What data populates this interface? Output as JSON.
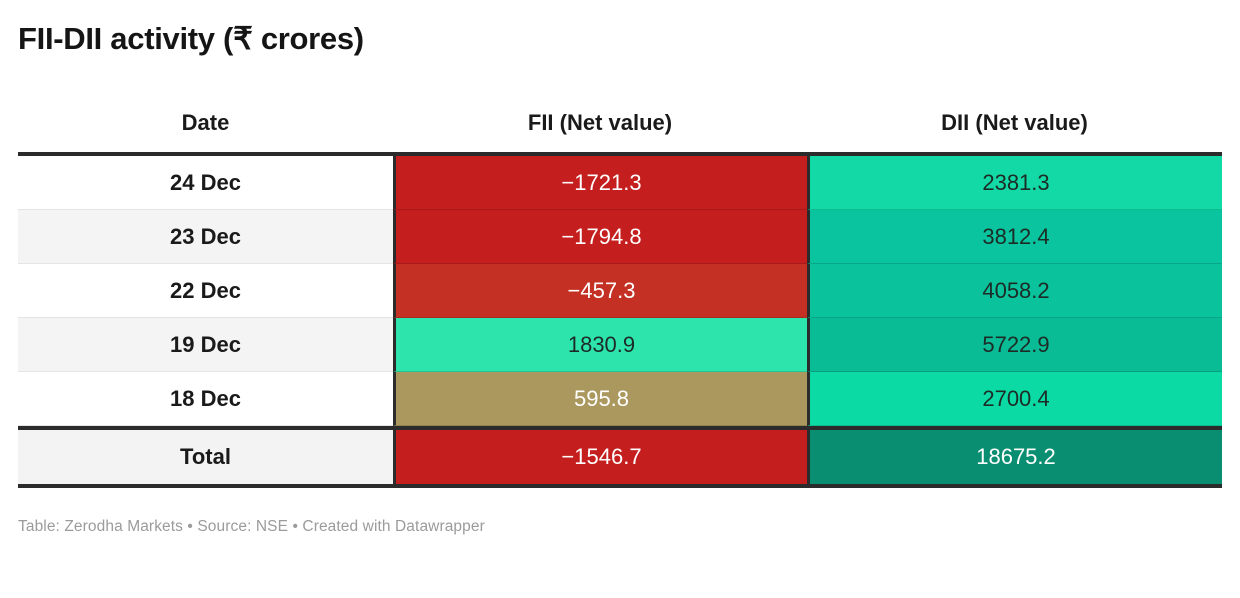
{
  "title": "FII-DII activity (₹ crores)",
  "table": {
    "columns": {
      "date": "Date",
      "fii": "FII (Net value)",
      "dii": "DII (Net value)"
    },
    "rows": [
      {
        "date": "24 Dec",
        "date_bg": "#ffffff",
        "fii": "−1721.3",
        "fii_bg": "#c41e1e",
        "fii_fg": "#ffffff",
        "dii": "2381.3",
        "dii_bg": "#12d9a5",
        "dii_fg": "#1c2b26"
      },
      {
        "date": "23 Dec",
        "date_bg": "#f4f4f4",
        "fii": "−1794.8",
        "fii_bg": "#c41e1e",
        "fii_fg": "#ffffff",
        "dii": "3812.4",
        "dii_bg": "#09c49e",
        "dii_fg": "#1c2b26"
      },
      {
        "date": "22 Dec",
        "date_bg": "#ffffff",
        "fii": "−457.3",
        "fii_bg": "#c43023",
        "fii_fg": "#ffffff",
        "dii": "4058.2",
        "dii_bg": "#0ac29c",
        "dii_fg": "#1c2b26"
      },
      {
        "date": "19 Dec",
        "date_bg": "#f4f4f4",
        "fii": "1830.9",
        "fii_bg": "#2ee4ad",
        "fii_fg": "#1c2b26",
        "dii": "5722.9",
        "dii_bg": "#0abc96",
        "dii_fg": "#1c2b26"
      },
      {
        "date": "18 Dec",
        "date_bg": "#ffffff",
        "fii": "595.8",
        "fii_bg": "#ab985e",
        "fii_fg": "#ffffff",
        "dii": "2700.4",
        "dii_bg": "#0cdaa4",
        "dii_fg": "#1c2b26"
      }
    ],
    "total": {
      "label": "Total",
      "label_bg": "#f3f3f3",
      "fii": "−1546.7",
      "fii_bg": "#c41e1e",
      "fii_fg": "#ffffff",
      "dii": "18675.2",
      "dii_bg": "#0a8e71",
      "dii_fg": "#ffffff"
    }
  },
  "footer": "Table: Zerodha Markets • Source: NSE • Created with Datawrapper",
  "colors": {
    "negative_strong": "#c41e1e",
    "negative_light": "#c43023",
    "positive_bright": "#12d9a5",
    "positive_mint": "#2ee4ad",
    "positive_dark": "#0a8e71",
    "neutral_tan": "#ab985e",
    "border_dark": "#2b2b2b",
    "row_alt": "#f4f4f4",
    "footer_text": "#9b9b9b"
  },
  "chart_data": {
    "type": "table",
    "title": "FII-DII activity (₹ crores)",
    "columns": [
      "Date",
      "FII (Net value)",
      "DII (Net value)"
    ],
    "categories": [
      "24 Dec",
      "23 Dec",
      "22 Dec",
      "19 Dec",
      "18 Dec"
    ],
    "series": [
      {
        "name": "FII (Net value)",
        "values": [
          -1721.3,
          -1794.8,
          -457.3,
          1830.9,
          595.8
        ],
        "total": -1546.7
      },
      {
        "name": "DII (Net value)",
        "values": [
          2381.3,
          3812.4,
          4058.2,
          5722.9,
          2700.4
        ],
        "total": 18675.2
      }
    ],
    "legend": "off",
    "grid": "off",
    "note": "cell background encodes value: red = negative, green = positive, darker green = larger"
  }
}
